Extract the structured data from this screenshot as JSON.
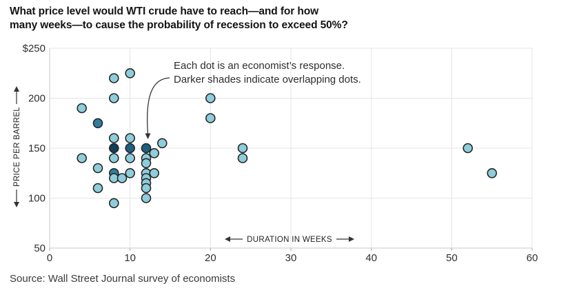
{
  "title": {
    "line1": "What price level would WTI crude have to reach—and for how",
    "line2": "many weeks—to cause the probability of recession to exceed 50%?"
  },
  "annotation": {
    "line1": "Each dot is an economist’s response.",
    "line2": "Darker shades indicate overlapping dots."
  },
  "source": "Source: Wall Street Journal survey of economists",
  "chart_data": {
    "type": "scatter",
    "title": "What price level would WTI crude have to reach—and for how many weeks—to cause the probability of recession to exceed 50%?",
    "xlabel": "DURATION IN WEEKS",
    "ylabel": "PRICE PER BARREL",
    "xlim": [
      0,
      60
    ],
    "ylim": [
      50,
      250
    ],
    "x_ticks": [
      0,
      10,
      20,
      30,
      40,
      50,
      60
    ],
    "x_tick_labels": [
      "0",
      "10",
      "20",
      "30",
      "40",
      "50",
      "60"
    ],
    "y_ticks": [
      250,
      200,
      150,
      100,
      50
    ],
    "y_tick_labels": [
      "$250",
      "200",
      "150",
      "100",
      "50"
    ],
    "grid": true,
    "legend": "none",
    "point_outline": "#262626",
    "shade_colors": {
      "1": "#8ecddb",
      "2": "#2f7e9e",
      "3": "#1d6082",
      "4": "#123f5a"
    },
    "shade_meaning": "overlap level — darker shades indicate overlapping dots",
    "points": [
      {
        "weeks": 4,
        "price": 190,
        "overlap": 1
      },
      {
        "weeks": 4,
        "price": 140,
        "overlap": 1
      },
      {
        "weeks": 6,
        "price": 175,
        "overlap": 2
      },
      {
        "weeks": 6,
        "price": 130,
        "overlap": 1
      },
      {
        "weeks": 6,
        "price": 110,
        "overlap": 1
      },
      {
        "weeks": 8,
        "price": 220,
        "overlap": 1
      },
      {
        "weeks": 8,
        "price": 200,
        "overlap": 1
      },
      {
        "weeks": 8,
        "price": 160,
        "overlap": 1
      },
      {
        "weeks": 8,
        "price": 150,
        "overlap": 4
      },
      {
        "weeks": 8,
        "price": 140,
        "overlap": 1
      },
      {
        "weeks": 8,
        "price": 125,
        "overlap": 2
      },
      {
        "weeks": 8,
        "price": 120,
        "overlap": 1
      },
      {
        "weeks": 8,
        "price": 95,
        "overlap": 1
      },
      {
        "weeks": 9,
        "price": 120,
        "overlap": 1
      },
      {
        "weeks": 10,
        "price": 225,
        "overlap": 1
      },
      {
        "weeks": 10,
        "price": 160,
        "overlap": 1
      },
      {
        "weeks": 10,
        "price": 150,
        "overlap": 3
      },
      {
        "weeks": 10,
        "price": 140,
        "overlap": 1
      },
      {
        "weeks": 10,
        "price": 125,
        "overlap": 1
      },
      {
        "weeks": 12,
        "price": 150,
        "overlap": 3
      },
      {
        "weeks": 12,
        "price": 140,
        "overlap": 1
      },
      {
        "weeks": 12,
        "price": 135,
        "overlap": 1
      },
      {
        "weeks": 12,
        "price": 125,
        "overlap": 1
      },
      {
        "weeks": 12,
        "price": 120,
        "overlap": 1
      },
      {
        "weeks": 12,
        "price": 115,
        "overlap": 1
      },
      {
        "weeks": 12,
        "price": 110,
        "overlap": 1
      },
      {
        "weeks": 12,
        "price": 100,
        "overlap": 1
      },
      {
        "weeks": 13,
        "price": 145,
        "overlap": 1
      },
      {
        "weeks": 13,
        "price": 125,
        "overlap": 1
      },
      {
        "weeks": 14,
        "price": 155,
        "overlap": 1
      },
      {
        "weeks": 20,
        "price": 200,
        "overlap": 1
      },
      {
        "weeks": 20,
        "price": 180,
        "overlap": 1
      },
      {
        "weeks": 24,
        "price": 150,
        "overlap": 1
      },
      {
        "weeks": 24,
        "price": 140,
        "overlap": 1
      },
      {
        "weeks": 52,
        "price": 150,
        "overlap": 1
      },
      {
        "weeks": 55,
        "price": 125,
        "overlap": 1
      }
    ]
  }
}
